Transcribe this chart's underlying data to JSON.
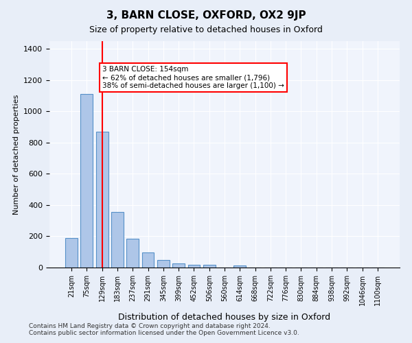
{
  "title": "3, BARN CLOSE, OXFORD, OX2 9JP",
  "subtitle": "Size of property relative to detached houses in Oxford",
  "xlabel": "Distribution of detached houses by size in Oxford",
  "ylabel": "Number of detached properties",
  "categories": [
    "21sqm",
    "75sqm",
    "129sqm",
    "183sqm",
    "237sqm",
    "291sqm",
    "345sqm",
    "399sqm",
    "452sqm",
    "506sqm",
    "560sqm",
    "614sqm",
    "668sqm",
    "722sqm",
    "776sqm",
    "830sqm",
    "884sqm",
    "938sqm",
    "992sqm",
    "1046sqm",
    "1100sqm"
  ],
  "values": [
    190,
    1110,
    870,
    355,
    185,
    95,
    50,
    25,
    18,
    18,
    0,
    15,
    0,
    0,
    0,
    0,
    0,
    0,
    0,
    0,
    0
  ],
  "bar_color": "#aec6e8",
  "bar_edge_color": "#5590c8",
  "red_line_x": 2,
  "annotation_text": "3 BARN CLOSE: 154sqm\n← 62% of detached houses are smaller (1,796)\n38% of semi-detached houses are larger (1,100) →",
  "annotation_box_color": "white",
  "annotation_box_edge_color": "red",
  "ylim": [
    0,
    1450
  ],
  "footnote": "Contains HM Land Registry data © Crown copyright and database right 2024.\nContains public sector information licensed under the Open Government Licence v3.0.",
  "background_color": "#e8eef8",
  "plot_bg_color": "#f0f4fc"
}
